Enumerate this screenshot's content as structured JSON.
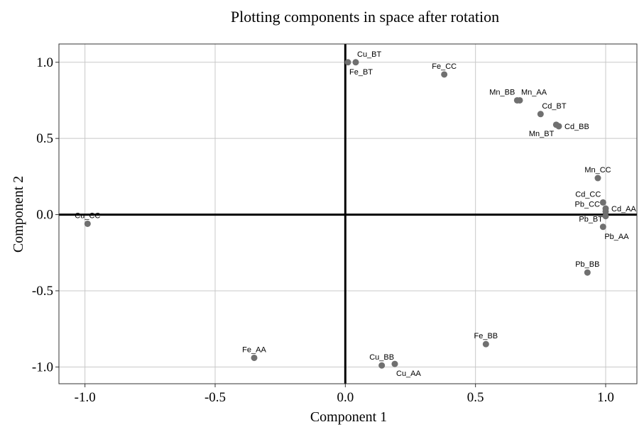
{
  "chart_data": {
    "type": "scatter",
    "title": "Plotting components in space after rotation",
    "xlabel": "Component 1",
    "ylabel": "Component 2",
    "xlim": [
      -1.1,
      1.12
    ],
    "ylim": [
      -1.11,
      1.12
    ],
    "xticks": [
      -1.0,
      -0.5,
      0.0,
      0.5,
      1.0
    ],
    "xtick_labels": [
      "-1.0",
      "-0.5",
      "0.0",
      "0.5",
      "1.0"
    ],
    "yticks": [
      -1.0,
      -0.5,
      0.0,
      0.5,
      1.0
    ],
    "ytick_labels": [
      "-1.0",
      "-0.5",
      "0.0",
      "0.5",
      "1.0"
    ],
    "grid": true,
    "reference_lines": {
      "x": 0,
      "y": 0
    },
    "point_color": "#707070",
    "points": [
      {
        "label": "Cu_BT",
        "x": 0.04,
        "y": 1.0,
        "label_pos": "above-right"
      },
      {
        "label": "Fe_BT",
        "x": 0.01,
        "y": 1.0,
        "label_pos": "below-right"
      },
      {
        "label": "Fe_CC",
        "x": 0.38,
        "y": 0.92,
        "label_pos": "above"
      },
      {
        "label": "Mn_BB",
        "x": 0.66,
        "y": 0.75,
        "label_pos": "above-left"
      },
      {
        "label": "Mn_AA",
        "x": 0.67,
        "y": 0.75,
        "label_pos": "above-right"
      },
      {
        "label": "Cd_BT",
        "x": 0.75,
        "y": 0.66,
        "label_pos": "above-right"
      },
      {
        "label": "Mn_BT",
        "x": 0.81,
        "y": 0.59,
        "label_pos": "below-left"
      },
      {
        "label": "Cd_BB",
        "x": 0.82,
        "y": 0.58,
        "label_pos": "right"
      },
      {
        "label": "Mn_CC",
        "x": 0.97,
        "y": 0.24,
        "label_pos": "above"
      },
      {
        "label": "Cd_CC",
        "x": 0.99,
        "y": 0.08,
        "label_pos": "above-left"
      },
      {
        "label": "Cd_AA",
        "x": 1.0,
        "y": 0.04,
        "label_pos": "right"
      },
      {
        "label": "Pb_CC",
        "x": 1.0,
        "y": 0.02,
        "label_pos": "left-far"
      },
      {
        "label": "Pb_BT",
        "x": 1.0,
        "y": -0.01,
        "label_pos": "left"
      },
      {
        "label": "Pb_AA",
        "x": 0.99,
        "y": -0.08,
        "label_pos": "below-right"
      },
      {
        "label": "Pb_BB",
        "x": 0.93,
        "y": -0.38,
        "label_pos": "above"
      },
      {
        "label": "Cu_CC",
        "x": -0.99,
        "y": -0.06,
        "label_pos": "above"
      },
      {
        "label": "Fe_AA",
        "x": -0.35,
        "y": -0.94,
        "label_pos": "above"
      },
      {
        "label": "Fe_BB",
        "x": 0.54,
        "y": -0.85,
        "label_pos": "above"
      },
      {
        "label": "Cu_BB",
        "x": 0.14,
        "y": -0.99,
        "label_pos": "above"
      },
      {
        "label": "Cu_AA",
        "x": 0.19,
        "y": -0.98,
        "label_pos": "below-right"
      }
    ]
  }
}
